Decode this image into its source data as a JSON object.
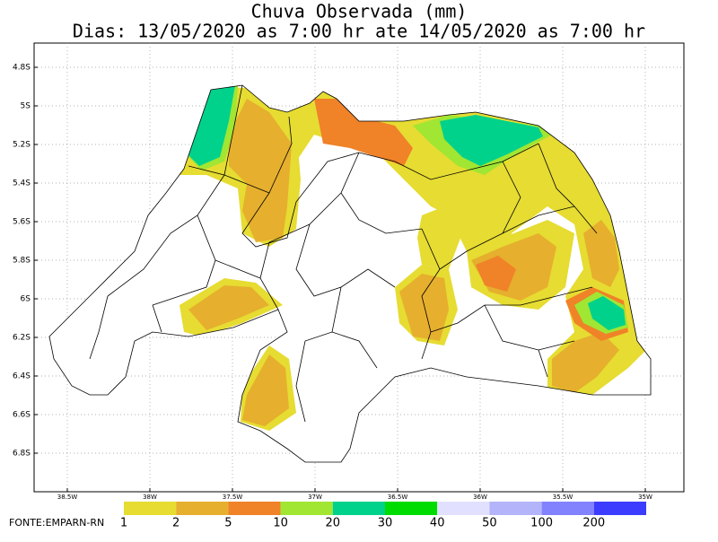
{
  "header": {
    "title": "Chuva Observada (mm)",
    "subtitle": "Dias: 13/05/2020 as 7:00 hr ate 14/05/2020 as 7:00 hr"
  },
  "map": {
    "lat_labels": [
      "4.8S",
      "5S",
      "5.2S",
      "5.4S",
      "5.6S",
      "5.8S",
      "6S",
      "6.2S",
      "6.4S",
      "6.6S",
      "6.8S"
    ],
    "lon_labels": [
      "38.5W",
      "38W",
      "37.5W",
      "37W",
      "36.5W",
      "36W",
      "35.5W",
      "35W"
    ]
  },
  "legend": {
    "labels": [
      "1",
      "2",
      "5",
      "10",
      "20",
      "30",
      "40",
      "50",
      "100",
      "200"
    ],
    "colors": [
      "#e6dc32",
      "#e6af2d",
      "#f08228",
      "#a0e632",
      "#00d28c",
      "#00dc00",
      "#e1e1ff",
      "#b4b4fa",
      "#8282ff",
      "#3c3cff"
    ]
  },
  "footer": {
    "source": "FONTE:EMPARN-RN"
  }
}
